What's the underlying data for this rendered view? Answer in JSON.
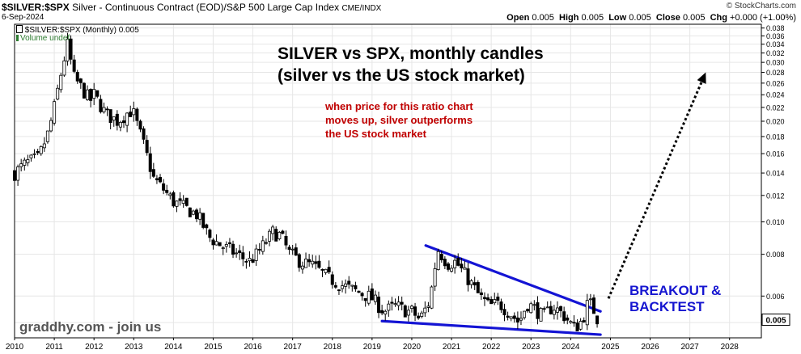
{
  "header": {
    "symbol": "$SILVER:$SPX",
    "description": "Silver - Continuous Contract (EOD)/S&P 500 Large Cap Index",
    "exchange": "CME/INDX",
    "date": "6-Sep-2024",
    "brand": "© StockCharts.com",
    "ohlc": {
      "open_label": "Open",
      "open": "0.005",
      "high_label": "High",
      "high": "0.005",
      "low_label": "Low",
      "low": "0.005",
      "close_label": "Close",
      "close": "0.005",
      "chg_label": "Chg",
      "chg": "+0.000 (+1.00%)"
    }
  },
  "legend": {
    "series_label": "$SILVER:$SPX (Monthly) 0.005",
    "volume_label": "Volume undef"
  },
  "annotations": {
    "title_line1": "SILVER vs SPX, monthly candles",
    "title_line2": "(silver vs the US stock market)",
    "note_line1": "when price for this ratio chart",
    "note_line2": "moves up, silver outperforms",
    "note_line3": "the US stock market",
    "callout_line1": "BREAKOUT &",
    "callout_line2": "BACKTEST",
    "watermark": "graddhy.com - join us"
  },
  "colors": {
    "candle": "#000000",
    "trendline": "#1414d4",
    "grid": "#e6e6e6",
    "arrow": "#000000"
  },
  "chart_data": {
    "type": "candlestick",
    "title": "$SILVER:$SPX (Monthly)",
    "y_scale": "log",
    "ylim": [
      0.0045,
      0.039
    ],
    "xlim": [
      2010.0,
      2028.8
    ],
    "y_ticks": [
      0.005,
      0.006,
      0.008,
      0.01,
      0.012,
      0.014,
      0.016,
      0.018,
      0.02,
      0.022,
      0.024,
      0.026,
      0.028,
      0.03,
      0.032,
      0.034,
      0.036,
      0.038
    ],
    "y_tick_labels": [
      "",
      "0.006",
      "0.008",
      "0.010",
      "0.012",
      "0.014",
      "0.016",
      "0.018",
      "0.020",
      "0.022",
      "0.024",
      "0.026",
      "0.028",
      "0.030",
      "0.032",
      "0.034",
      "0.036",
      "0.038"
    ],
    "x_ticks": [
      "2010",
      "2011",
      "2012",
      "2013",
      "2014",
      "2015",
      "2016",
      "2017",
      "2018",
      "2019",
      "2020",
      "2021",
      "2022",
      "2023",
      "2024",
      "2025",
      "2026",
      "2027",
      "2028"
    ],
    "last_value_label": "0.005",
    "last_value": 0.0051,
    "close_path": [
      [
        2010.0,
        0.014
      ],
      [
        2010.3,
        0.015
      ],
      [
        2010.6,
        0.0155
      ],
      [
        2010.85,
        0.0185
      ],
      [
        2011.0,
        0.022
      ],
      [
        2011.2,
        0.029
      ],
      [
        2011.33,
        0.034
      ],
      [
        2011.5,
        0.027
      ],
      [
        2011.7,
        0.025
      ],
      [
        2011.9,
        0.023
      ],
      [
        2012.0,
        0.024
      ],
      [
        2012.3,
        0.021
      ],
      [
        2012.6,
        0.02
      ],
      [
        2012.9,
        0.0215
      ],
      [
        2013.0,
        0.021
      ],
      [
        2013.25,
        0.017
      ],
      [
        2013.5,
        0.0135
      ],
      [
        2013.75,
        0.0125
      ],
      [
        2014.0,
        0.0115
      ],
      [
        2014.3,
        0.011
      ],
      [
        2014.6,
        0.0105
      ],
      [
        2014.9,
        0.009
      ],
      [
        2015.2,
        0.0085
      ],
      [
        2015.6,
        0.008
      ],
      [
        2015.9,
        0.0076
      ],
      [
        2016.1,
        0.008
      ],
      [
        2016.5,
        0.0093
      ],
      [
        2016.7,
        0.0091
      ],
      [
        2016.9,
        0.0081
      ],
      [
        2017.2,
        0.0076
      ],
      [
        2017.5,
        0.0074
      ],
      [
        2017.9,
        0.0068
      ],
      [
        2018.2,
        0.0065
      ],
      [
        2018.6,
        0.0062
      ],
      [
        2018.9,
        0.006
      ],
      [
        2019.0,
        0.0059
      ],
      [
        2019.3,
        0.0054
      ],
      [
        2019.6,
        0.0056
      ],
      [
        2019.9,
        0.0054
      ],
      [
        2020.0,
        0.0054
      ],
      [
        2020.2,
        0.0051
      ],
      [
        2020.45,
        0.0058
      ],
      [
        2020.65,
        0.0083
      ],
      [
        2020.9,
        0.0075
      ],
      [
        2021.1,
        0.0076
      ],
      [
        2021.4,
        0.0068
      ],
      [
        2021.7,
        0.006
      ],
      [
        2021.95,
        0.0056
      ],
      [
        2022.2,
        0.0057
      ],
      [
        2022.5,
        0.0053
      ],
      [
        2022.7,
        0.005
      ],
      [
        2022.9,
        0.0057
      ],
      [
        2023.1,
        0.0055
      ],
      [
        2023.3,
        0.0052
      ],
      [
        2023.55,
        0.0056
      ],
      [
        2023.8,
        0.0053
      ],
      [
        2024.1,
        0.0048
      ],
      [
        2024.3,
        0.0051
      ],
      [
        2024.45,
        0.0058
      ],
      [
        2024.6,
        0.0054
      ],
      [
        2024.68,
        0.0051
      ]
    ],
    "trendlines": [
      {
        "name": "upper",
        "points": [
          [
            2020.35,
            0.0085
          ],
          [
            2024.75,
            0.0054
          ]
        ]
      },
      {
        "name": "lower",
        "points": [
          [
            2019.25,
            0.00505
          ],
          [
            2024.75,
            0.0046
          ]
        ]
      }
    ],
    "projection_arrow": {
      "from": [
        2024.95,
        0.0059
      ],
      "to": [
        2027.4,
        0.028
      ]
    }
  }
}
